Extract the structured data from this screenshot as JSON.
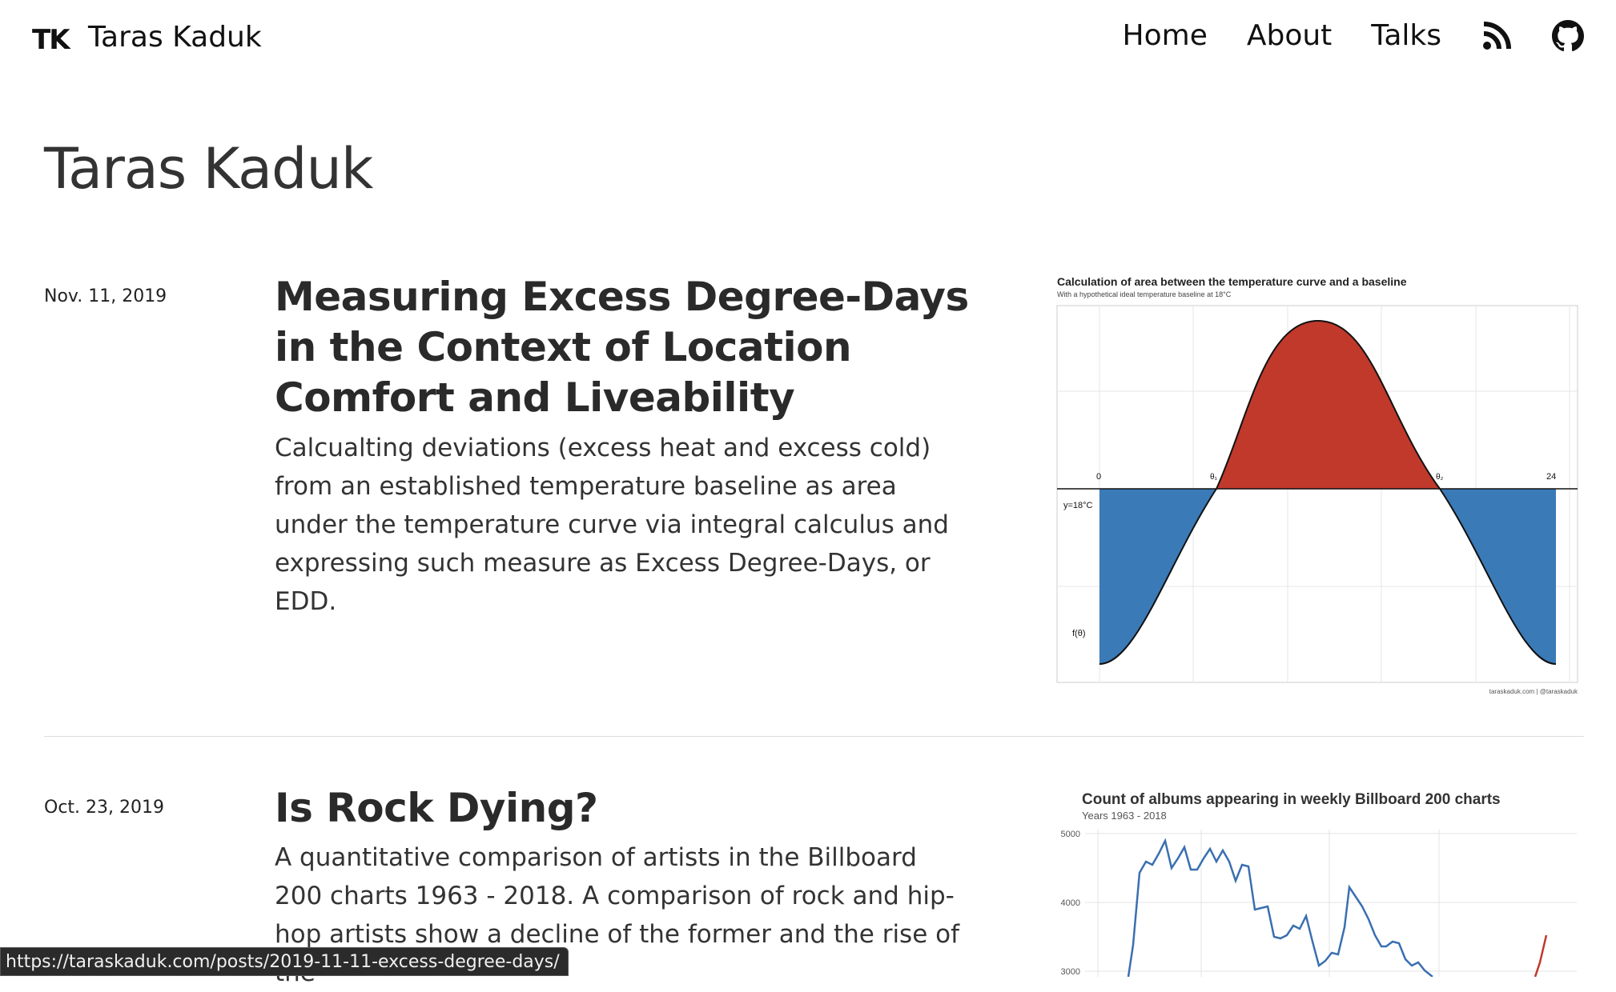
{
  "header": {
    "logo": "TK",
    "site_name": "Taras Kaduk",
    "nav": [
      {
        "label": "Home"
      },
      {
        "label": "About"
      },
      {
        "label": "Talks"
      }
    ],
    "icons": [
      "rss-icon",
      "github-icon"
    ]
  },
  "page_title": "Taras Kaduk",
  "posts": [
    {
      "date": "Nov. 11, 2019",
      "title": "Measuring Excess Degree-Days in the Context of Location Comfort and Liveability",
      "summary": "Calcualting deviations (excess heat and excess cold) from an established temperature baseline as area under the temperature curve via integral calculus and expressing such measure as Excess Degree-Days, or EDD.",
      "thumbnail": {
        "title": "Calculation of area between the temperature curve and a baseline",
        "subtitle": "With a hypothetical ideal temperature baseline at 18°C",
        "labels": {
          "zero": "0",
          "theta1": "θ₁",
          "theta2": "θ₂",
          "end": "24",
          "baseline": "y=18°C",
          "fn": "f(θ)"
        },
        "caption": "taraskaduk.com | @taraskaduk",
        "colors": {
          "above": "#c0392b",
          "below": "#3a7ab7"
        }
      }
    },
    {
      "date": "Oct. 23, 2019",
      "title": "Is Rock Dying?",
      "summary": "A quantitative comparison of artists in the Billboard 200 charts 1963 - 2018. A comparison of rock and hip-hop artists show a decline of the former and the rise of the",
      "thumbnail": {
        "title": "Count of albums appearing in weekly Billboard 200 charts",
        "subtitle": "Years 1963 - 2018",
        "y_ticks": [
          "5000",
          "4000",
          "3000"
        ],
        "colors": {
          "rock": "#3a6fb0",
          "hiphop": "#c0392b"
        }
      }
    }
  ],
  "status_bar": "https://taraskaduk.com/posts/2019-11-11-excess-degree-days/"
}
